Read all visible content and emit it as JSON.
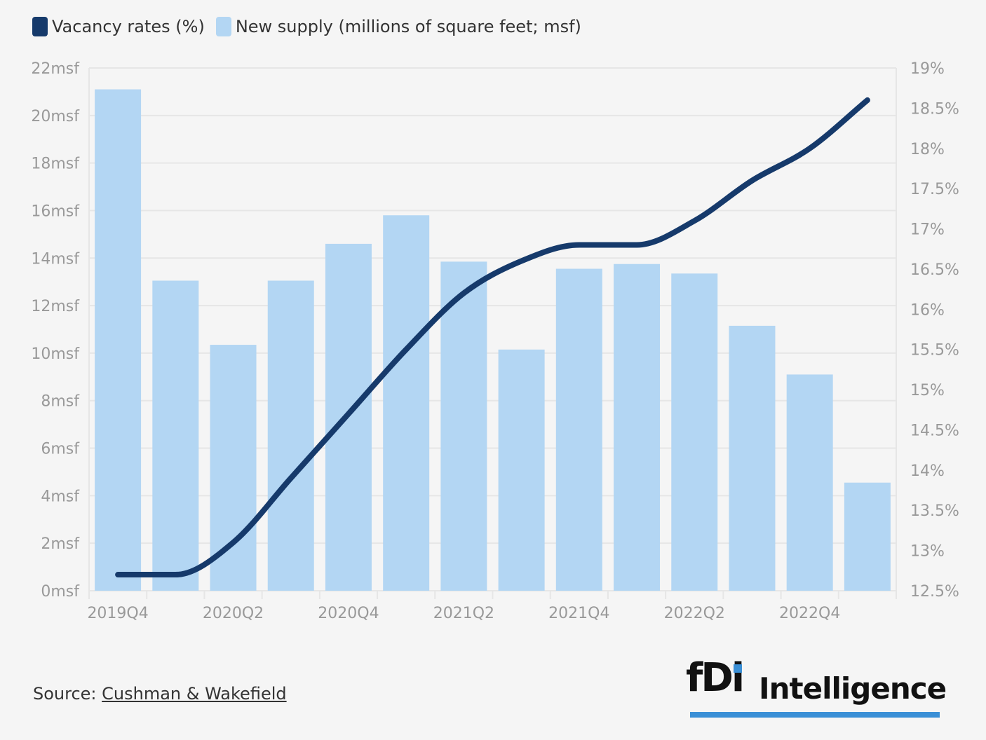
{
  "legend": {
    "vacancy_label": "Vacancy rates (%)",
    "supply_label": "New supply (millions of square feet; msf)"
  },
  "colors": {
    "vacancy": "#163a6b",
    "supply": "#b3d6f3",
    "grid": "#e6e6e6",
    "logo_accent": "#3a8fd6"
  },
  "source": {
    "prefix": "Source: ",
    "name": "Cushman & Wakefield"
  },
  "logo": {
    "mark": "fDi",
    "word": "Intelligence"
  },
  "chart_data": {
    "type": "bar",
    "categories": [
      "2019Q4",
      "2020Q1",
      "2020Q2",
      "2020Q3",
      "2020Q4",
      "2021Q1",
      "2021Q2",
      "2021Q3",
      "2021Q4",
      "2022Q1",
      "2022Q2",
      "2022Q3",
      "2022Q4",
      "2023Q1"
    ],
    "x_tick_labels": [
      "2019Q4",
      "",
      "2020Q2",
      "",
      "2020Q4",
      "",
      "2021Q2",
      "",
      "2021Q4",
      "",
      "2022Q2",
      "",
      "2022Q4",
      ""
    ],
    "series": [
      {
        "name": "New supply (millions of square feet; msf)",
        "type": "bar",
        "axis": "left",
        "values": [
          21.1,
          13.05,
          10.35,
          13.05,
          14.6,
          15.8,
          13.85,
          10.15,
          13.55,
          13.75,
          13.35,
          11.15,
          9.1,
          4.55
        ]
      },
      {
        "name": "Vacancy rates (%)",
        "type": "line",
        "axis": "right",
        "values": [
          12.7,
          12.7,
          13.1,
          13.9,
          14.7,
          15.5,
          16.2,
          16.6,
          16.8,
          16.8,
          17.1,
          17.6,
          18.0,
          18.6
        ]
      }
    ],
    "y_left": {
      "lim": [
        0,
        22
      ],
      "ticks": [
        0,
        2,
        4,
        6,
        8,
        10,
        12,
        14,
        16,
        18,
        20,
        22
      ],
      "tick_labels": [
        "0msf",
        "2msf",
        "4msf",
        "6msf",
        "8msf",
        "10msf",
        "12msf",
        "14msf",
        "16msf",
        "18msf",
        "20msf",
        "22msf"
      ]
    },
    "y_right": {
      "lim": [
        12.5,
        19
      ],
      "ticks": [
        12.5,
        13,
        13.5,
        14,
        14.5,
        15,
        15.5,
        16,
        16.5,
        17,
        17.5,
        18,
        18.5,
        19
      ],
      "tick_labels": [
        "12.5%",
        "13%",
        "13.5%",
        "14%",
        "14.5%",
        "15%",
        "15.5%",
        "16%",
        "16.5%",
        "17%",
        "17.5%",
        "18%",
        "18.5%",
        "19%"
      ]
    },
    "grid": true,
    "legend_position": "top-left"
  }
}
